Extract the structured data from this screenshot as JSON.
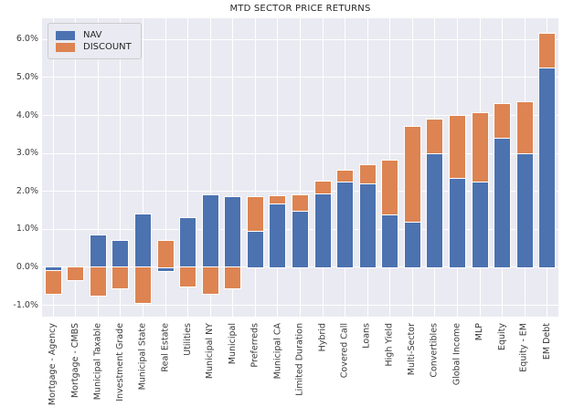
{
  "title": "MTD SECTOR PRICE RETURNS",
  "colors": {
    "nav": "#4C72B0",
    "discount": "#DD8452",
    "plot_background": "#EAEAF2",
    "gridline": "#FFFFFF",
    "text": "#262626"
  },
  "legend": {
    "items": [
      {
        "label": "NAV",
        "color": "#4C72B0"
      },
      {
        "label": "DISCOUNT",
        "color": "#DD8452"
      }
    ]
  },
  "y_axis": {
    "tick_labels": [
      "6.0%",
      "5.0%",
      "4.0%",
      "3.0%",
      "2.0%",
      "1.0%",
      "0.0%",
      "-1.0%"
    ],
    "tick_values": [
      6,
      5,
      4,
      3,
      2,
      1,
      0,
      -1
    ]
  },
  "chart_data": {
    "type": "bar",
    "stacked": true,
    "title": "MTD SECTOR PRICE RETURNS",
    "xlabel": "",
    "ylabel": "",
    "ylim": [
      -1.3,
      6.56
    ],
    "grid": true,
    "legend_position": "upper left",
    "value_unit": "percent",
    "categories": [
      "Mortgage - Agency",
      "Mortgage - CMBS",
      "Municipal Taxable",
      "Investment Grade",
      "Municipal State",
      "Real Estate",
      "Utilities",
      "Municipal NY",
      "Municipal",
      "Preferreds",
      "Municipal CA",
      "Limited Duration",
      "Hybrid",
      "Covered Call",
      "Loans",
      "High Yield",
      "Multi-Sector",
      "Convertibles",
      "Global Income",
      "MLP",
      "Equity",
      "Equity - EM",
      "EM Debt"
    ],
    "series": [
      {
        "name": "NAV",
        "color": "#4C72B0",
        "values": [
          -0.1,
          0.0,
          0.85,
          0.7,
          1.4,
          -0.1,
          1.3,
          1.9,
          1.85,
          0.95,
          1.67,
          1.5,
          1.95,
          2.25,
          2.2,
          1.4,
          1.2,
          3.0,
          2.35,
          2.25,
          3.4,
          3.0,
          5.25
        ]
      },
      {
        "name": "DISCOUNT",
        "color": "#DD8452",
        "values": [
          -0.6,
          -0.35,
          -0.75,
          -0.55,
          -0.95,
          0.7,
          -0.5,
          -0.7,
          -0.55,
          0.9,
          0.2,
          0.4,
          0.3,
          0.3,
          0.5,
          1.4,
          2.5,
          0.88,
          1.65,
          1.8,
          0.9,
          1.35,
          0.9
        ]
      }
    ]
  }
}
